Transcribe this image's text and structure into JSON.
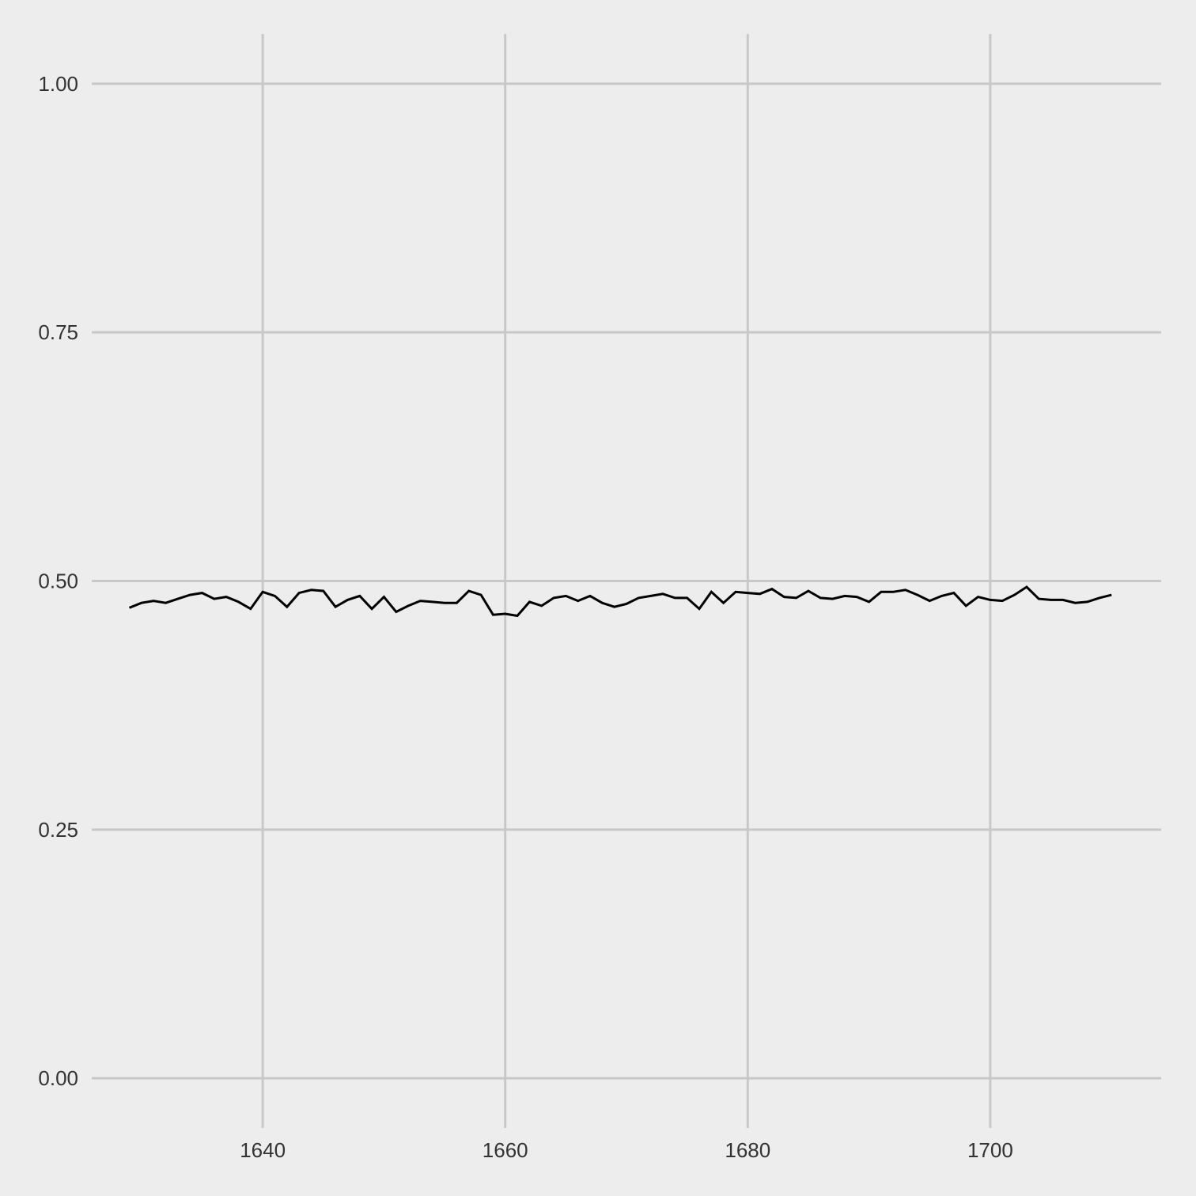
{
  "chart_data": {
    "type": "line",
    "title": "",
    "xlabel": "",
    "ylabel": "",
    "xlim": [
      1625.9,
      1714.1
    ],
    "ylim": [
      -0.05,
      1.05
    ],
    "x_ticks": [
      1640,
      1660,
      1680,
      1700
    ],
    "x_tick_labels": [
      "1640",
      "1660",
      "1680",
      "1700"
    ],
    "y_ticks": [
      0,
      0.25,
      0.5,
      0.75,
      1.0
    ],
    "y_tick_labels": [
      "0.00",
      "0.25",
      "0.50",
      "0.75",
      "1.00"
    ],
    "grid": true,
    "legend": "none",
    "colors": {
      "background": "#ededed",
      "grid": "#c8c8c8",
      "line": "#000000",
      "text": "#333333"
    },
    "series": [
      {
        "x": [
          1629,
          1630,
          1631,
          1632,
          1633,
          1634,
          1635,
          1636,
          1637,
          1638,
          1639,
          1640,
          1641,
          1642,
          1643,
          1644,
          1645,
          1646,
          1647,
          1648,
          1649,
          1650,
          1651,
          1652,
          1653,
          1654,
          1655,
          1656,
          1657,
          1658,
          1659,
          1660,
          1661,
          1662,
          1663,
          1664,
          1665,
          1666,
          1667,
          1668,
          1669,
          1670,
          1671,
          1672,
          1673,
          1674,
          1675,
          1676,
          1677,
          1678,
          1679,
          1680,
          1681,
          1682,
          1683,
          1684,
          1685,
          1686,
          1687,
          1688,
          1689,
          1690,
          1691,
          1692,
          1693,
          1694,
          1695,
          1696,
          1697,
          1698,
          1699,
          1700,
          1701,
          1702,
          1703,
          1704,
          1705,
          1706,
          1707,
          1708,
          1709,
          1710
        ],
        "y": [
          0.473,
          0.478,
          0.48,
          0.478,
          0.482,
          0.486,
          0.488,
          0.482,
          0.484,
          0.479,
          0.472,
          0.489,
          0.485,
          0.474,
          0.488,
          0.491,
          0.49,
          0.474,
          0.481,
          0.485,
          0.472,
          0.484,
          0.469,
          0.475,
          0.48,
          0.479,
          0.478,
          0.478,
          0.49,
          0.486,
          0.466,
          0.467,
          0.465,
          0.479,
          0.475,
          0.483,
          0.485,
          0.48,
          0.485,
          0.478,
          0.474,
          0.477,
          0.483,
          0.485,
          0.487,
          0.483,
          0.483,
          0.472,
          0.489,
          0.478,
          0.489,
          0.488,
          0.487,
          0.492,
          0.484,
          0.483,
          0.49,
          0.483,
          0.482,
          0.485,
          0.484,
          0.479,
          0.489,
          0.489,
          0.491,
          0.486,
          0.48,
          0.485,
          0.488,
          0.475,
          0.484,
          0.481,
          0.48,
          0.486,
          0.494,
          0.482,
          0.481,
          0.481,
          0.478,
          0.479,
          0.483,
          0.486
        ]
      }
    ]
  }
}
